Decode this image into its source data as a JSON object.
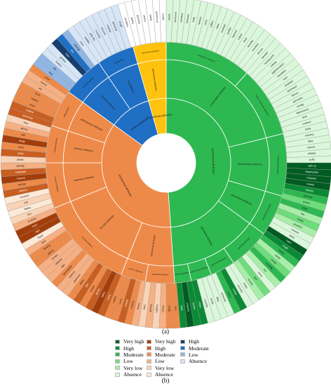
{
  "figure": {
    "caption_a": "(a)",
    "caption_b": "(b)"
  },
  "palette": {
    "green": [
      "#005c22",
      "#0a8a35",
      "#2db851",
      "#6ddc7b",
      "#a8eea8",
      "#dbf7db"
    ],
    "orange": [
      "#a33d0a",
      "#c95e21",
      "#ee8a49",
      "#f6b083",
      "#fad3b6",
      "#fde9d8"
    ],
    "blue": [
      "#163e6e",
      "#1f6fc4",
      "#92b6e3",
      "#d7e6f6"
    ],
    "yellow": "#ffc20e",
    "white": "#ffffff"
  },
  "legend": {
    "green": [
      {
        "label": "Very high",
        "color": "#005c22"
      },
      {
        "label": "High",
        "color": "#0a8a35"
      },
      {
        "label": "Moderate",
        "color": "#2db851"
      },
      {
        "label": "Low",
        "color": "#6ddc7b"
      },
      {
        "label": "Very low",
        "color": "#a8eea8"
      },
      {
        "label": "Absence",
        "color": "#dbf7db"
      }
    ],
    "orange": [
      {
        "label": "Very high",
        "color": "#a33d0a"
      },
      {
        "label": "High",
        "color": "#c95e21"
      },
      {
        "label": "Moderate",
        "color": "#ee8a49"
      },
      {
        "label": "Low",
        "color": "#f6b083"
      },
      {
        "label": "Very low",
        "color": "#fad3b6"
      },
      {
        "label": "Absence",
        "color": "#fde9d8"
      }
    ],
    "blue": [
      {
        "label": "High",
        "color": "#163e6e"
      },
      {
        "label": "Moderate",
        "color": "#1f6fc4"
      },
      {
        "label": "Low",
        "color": "#92b6e3"
      },
      {
        "label": "Absence",
        "color": "#d7e6f6"
      }
    ]
  },
  "sunburst": {
    "inner": [
      {
        "label": "geometrical attributes",
        "span": 176,
        "group": "green"
      },
      {
        "label": "mechanical attributes",
        "span": 130,
        "group": "orange"
      },
      {
        "label": "surface attributes",
        "span": 38,
        "group": "blue"
      },
      {
        "label": "geometrical attributes",
        "span": 16,
        "group": "yellow"
      }
    ],
    "middle": [
      {
        "label": "conformation attributes",
        "span": 76,
        "group": "green"
      },
      {
        "label": "global shape attributes",
        "span": 30,
        "group": "green"
      },
      {
        "label": "geometrical attributes",
        "span": 20,
        "group": "green"
      },
      {
        "label": "granularity attributes",
        "span": 50,
        "group": "green"
      },
      {
        "label": "granularity attributes",
        "span": 26,
        "group": "orange"
      },
      {
        "label": "viscosity attributes",
        "span": 46,
        "group": "orange"
      },
      {
        "label": "hardness attributes",
        "span": 22,
        "group": "orange"
      },
      {
        "label": "elasticity attributes",
        "span": 18,
        "group": "orange"
      },
      {
        "label": "adhesiveness attributes",
        "span": 18,
        "group": "orange"
      },
      {
        "label": "moisture attributes",
        "span": 20,
        "group": "blue"
      },
      {
        "label": "fat attributes",
        "span": 18,
        "group": "blue"
      },
      {
        "label": "geometrical attributes",
        "span": 16,
        "group": "yellow"
      }
    ],
    "outer": [
      {
        "label": "conformation attributes",
        "span": 42,
        "group": "green"
      },
      {
        "label": "inside conformation attributes",
        "span": 34,
        "group": "green"
      },
      {
        "label": "global shape attributes",
        "span": 30,
        "group": "green"
      },
      {
        "label": "geometrical attributes",
        "span": 20,
        "group": "green"
      },
      {
        "label": "granularity attributes",
        "span": 20,
        "group": "green"
      },
      {
        "label": "geometrical attributes",
        "span": 12,
        "group": "green"
      },
      {
        "label": "conformation attributes",
        "span": 10,
        "group": "green"
      },
      {
        "label": "surface attributes",
        "span": 8,
        "group": "green"
      },
      {
        "label": "granularity attributes",
        "span": 14,
        "group": "orange"
      },
      {
        "label": "cohesive attributes",
        "span": 12,
        "group": "orange"
      },
      {
        "label": "viscosity attributes",
        "span": 46,
        "group": "orange"
      },
      {
        "label": "hardness attributes",
        "span": 22,
        "group": "orange"
      },
      {
        "label": "elasticity attributes",
        "span": 18,
        "group": "orange"
      },
      {
        "label": "adhesiveness",
        "span": 18,
        "group": "orange"
      },
      {
        "label": "moisture attributes",
        "span": 20,
        "group": "blue"
      },
      {
        "label": "fat attributes",
        "span": 18,
        "group": "blue"
      },
      {
        "label": "geometrical attributes",
        "span": 16,
        "group": "yellow"
      }
    ],
    "leaves": [
      {
        "label": "beefy",
        "level": 5
      },
      {
        "label": "anchored",
        "level": 5
      },
      {
        "label": "serrated",
        "level": 5
      },
      {
        "label": "blossom",
        "level": 5
      },
      {
        "label": "fluffy",
        "level": 5
      },
      {
        "label": "twisted",
        "level": 5
      },
      {
        "label": "curly",
        "level": 5
      },
      {
        "label": "ruffled",
        "level": 5
      },
      {
        "label": "wavy",
        "level": 5
      },
      {
        "label": "marbled",
        "level": 5
      },
      {
        "label": "stuffed",
        "level": 5
      },
      {
        "label": "layered",
        "level": 5
      },
      {
        "label": "coiled",
        "level": 5
      },
      {
        "label": "shell",
        "level": 5
      },
      {
        "label": "lamellar",
        "level": 5
      },
      {
        "label": "wrinkled",
        "level": 5
      },
      {
        "label": "porous",
        "level": 5
      },
      {
        "label": "aerated",
        "level": 5
      },
      {
        "label": "honeycomb",
        "level": 5
      },
      {
        "label": "cellular",
        "level": 5
      },
      {
        "label": "agglomerated",
        "level": 5
      },
      {
        "label": "crystalline",
        "level": 5
      },
      {
        "label": "iced",
        "level": 5
      },
      {
        "label": "stratified",
        "level": 5
      },
      {
        "label": "laminated",
        "level": 5
      },
      {
        "label": "fibrous",
        "level": 5
      },
      {
        "label": "spinnable",
        "level": 5
      },
      {
        "label": "stringy",
        "level": 5
      },
      {
        "label": "filamentous",
        "level": 5
      },
      {
        "label": "bent",
        "level": 5
      },
      {
        "label": "crushed",
        "level": 5
      },
      {
        "label": "bulky",
        "level": 5
      },
      {
        "label": "shaving",
        "level": 5
      },
      {
        "label": "flaky",
        "level": 5
      },
      {
        "label": "domed",
        "level": 5
      },
      {
        "label": "inflated",
        "level": 5
      },
      {
        "label": "puffy",
        "level": 5
      },
      {
        "label": "split up",
        "level": 0
      },
      {
        "label": "fragmented",
        "level": 0
      },
      {
        "label": "chopped",
        "level": 0
      },
      {
        "label": "coarse",
        "level": 0
      },
      {
        "label": "chunky",
        "level": 1
      },
      {
        "label": "granular",
        "level": 2
      },
      {
        "label": "grainy",
        "level": 3
      },
      {
        "label": "gritty",
        "level": 2
      },
      {
        "label": "fine",
        "level": 4
      },
      {
        "label": "chalky",
        "level": 3
      },
      {
        "label": "powdery",
        "level": 4
      },
      {
        "label": "smooth",
        "level": 5
      },
      {
        "label": "pasty",
        "level": 5
      },
      {
        "label": "hard",
        "level": 0
      },
      {
        "label": "rough",
        "level": 1
      },
      {
        "label": "lumpy",
        "level": 2
      },
      {
        "label": "sandy",
        "level": 4
      },
      {
        "label": "mealy",
        "level": 3
      },
      {
        "label": "crumbly",
        "level": 2
      },
      {
        "label": "dry",
        "level": 4
      },
      {
        "label": "sticky",
        "level": 5
      },
      {
        "label": "soft",
        "level": 3
      },
      {
        "label": "mushy",
        "level": 4
      },
      {
        "label": "crispy",
        "level": 5
      },
      {
        "label": "crunchy",
        "level": 5
      },
      {
        "label": "crusty",
        "level": 1
      },
      {
        "label": "toasty",
        "level": 2
      },
      {
        "label": "cohesive",
        "level": 5
      },
      {
        "label": "flaky",
        "level": 5
      },
      {
        "label": "brittle",
        "level": 5
      },
      {
        "label": "crumbly",
        "level": 5
      },
      {
        "label": "crispy",
        "level": 1
      },
      {
        "label": "tender",
        "level": 1
      },
      {
        "label": "crunchy",
        "level": 0
      },
      {
        "label": "hard",
        "level": 1
      },
      {
        "label": "firm",
        "level": 2
      },
      {
        "label": "tough",
        "level": 2
      },
      {
        "label": "chewy",
        "level": 3
      },
      {
        "label": "rubbery",
        "level": 4
      },
      {
        "label": "gummy",
        "level": 3
      },
      {
        "label": "thick",
        "level": 4
      },
      {
        "label": "heavy",
        "level": 3
      },
      {
        "label": "creamy",
        "level": 2
      },
      {
        "label": "velvety",
        "level": 1
      },
      {
        "label": "runny",
        "level": 2
      },
      {
        "label": "watery",
        "level": 2
      },
      {
        "label": "runny",
        "level": 1
      },
      {
        "label": "tacky",
        "level": 0
      },
      {
        "label": "gooey",
        "level": 1
      },
      {
        "label": "syrupy",
        "level": 2
      },
      {
        "label": "thin",
        "level": 1
      },
      {
        "label": "sticky",
        "level": 2
      },
      {
        "label": "glutinous",
        "level": 3
      },
      {
        "label": "stretchy",
        "level": 3
      },
      {
        "label": "spreadable",
        "level": 2
      },
      {
        "label": "silky",
        "level": 3
      },
      {
        "label": "slippery",
        "level": 3
      },
      {
        "label": "syrupy",
        "level": 3
      },
      {
        "label": "glassy",
        "level": 2
      },
      {
        "label": "flowing",
        "level": 2
      },
      {
        "label": "fluid",
        "level": 3
      },
      {
        "label": "liquid",
        "level": 5
      },
      {
        "label": "rigid",
        "level": 0
      },
      {
        "label": "hard",
        "level": 0
      },
      {
        "label": "al dente",
        "level": 3
      },
      {
        "label": "firm",
        "level": 4
      },
      {
        "label": "flabby",
        "level": 5
      },
      {
        "label": "soft",
        "level": 4
      },
      {
        "label": "crushed",
        "level": 5
      },
      {
        "label": "rubbery",
        "level": 1
      },
      {
        "label": "springy",
        "level": 2
      },
      {
        "label": "bouncy",
        "level": 0
      },
      {
        "label": "malleable",
        "level": 1
      },
      {
        "label": "springy",
        "level": 3
      },
      {
        "label": "plastic",
        "level": 4
      },
      {
        "label": "sticky",
        "level": 1
      },
      {
        "label": "tacky",
        "level": 2
      },
      {
        "label": "clingy",
        "level": 0
      },
      {
        "label": "stiff",
        "level": 2
      },
      {
        "label": "glossy",
        "level": 3
      },
      {
        "label": "limp",
        "level": 4
      },
      {
        "label": "drenched",
        "level": 1
      },
      {
        "label": "soaked",
        "level": 1
      },
      {
        "label": "moist",
        "level": 2
      },
      {
        "label": "watery",
        "level": 2
      },
      {
        "label": "fresh",
        "level": 2
      },
      {
        "label": "dry",
        "level": 3
      },
      {
        "label": "humid",
        "level": 3
      },
      {
        "label": "moist",
        "level": 2
      },
      {
        "label": "fatty",
        "level": 2
      },
      {
        "label": "oily",
        "level": 2
      },
      {
        "label": "buttery",
        "level": 3
      },
      {
        "label": "greasy",
        "level": 3
      },
      {
        "label": "lean",
        "level": 0
      },
      {
        "label": "rich",
        "level": 1
      },
      {
        "label": "spongy",
        "level": 2
      },
      {
        "label": "juicy",
        "level": 3
      },
      {
        "label": "wobbly",
        "level": 5
      },
      {
        "label": "jelly-like",
        "level": 5
      },
      {
        "label": "crumbly",
        "level": 5
      },
      {
        "label": "smooth",
        "level": 5
      },
      {
        "label": "creamy",
        "level": 5
      },
      {
        "label": "spherical",
        "level": 5
      },
      {
        "label": "rough",
        "level": 5
      },
      {
        "label": "powdery",
        "level": 5
      },
      {
        "label": "grainy",
        "level": 5
      },
      {
        "label": "granular",
        "level": 5
      },
      {
        "label": "pearly",
        "level": 5
      },
      {
        "label": "sandy",
        "level": 5
      },
      {
        "label": "gelatinous",
        "level": 5
      },
      {
        "label": "woolly",
        "level": 5
      }
    ]
  }
}
